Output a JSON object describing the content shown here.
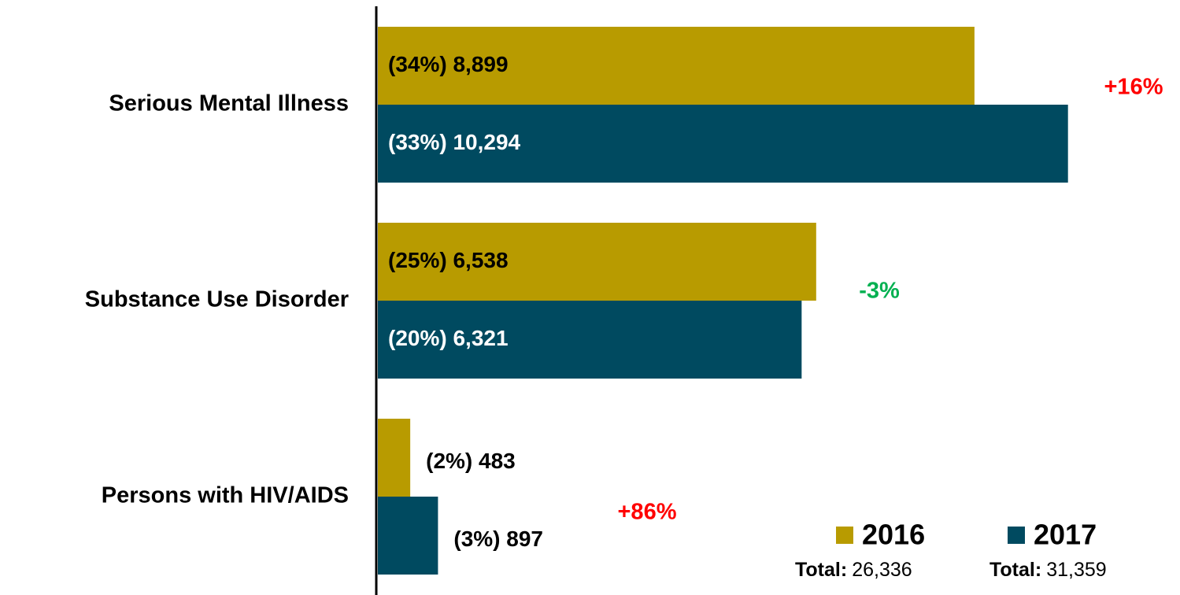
{
  "chart_data": {
    "type": "bar",
    "orientation": "horizontal",
    "categories": [
      "Serious Mental Illness",
      "Substance Use Disorder",
      "Persons with HIV/AIDS"
    ],
    "series": [
      {
        "name": "2016",
        "color": "#b89b00",
        "values": [
          8899,
          6538,
          483
        ],
        "value_labels": [
          "(34%) 8,899",
          "(25%) 6,538",
          "(2%) 483"
        ],
        "total": {
          "value": 26336,
          "label": "26,336"
        }
      },
      {
        "name": "2017",
        "color": "#004a60",
        "values": [
          10294,
          6321,
          897
        ],
        "value_labels": [
          "(33%) 10,294",
          "(20%) 6,321",
          "(3%) 897"
        ],
        "total": {
          "value": 31359,
          "label": "31,359"
        }
      }
    ],
    "total_text": "Total:",
    "annotations": [
      {
        "text": "+16%",
        "color": "#ff0000"
      },
      {
        "text": "-3%",
        "color": "#00b050"
      },
      {
        "text": "+86%",
        "color": "#ff0000"
      }
    ],
    "xlim": [
      0,
      12000
    ],
    "legend": "bottom-right"
  }
}
